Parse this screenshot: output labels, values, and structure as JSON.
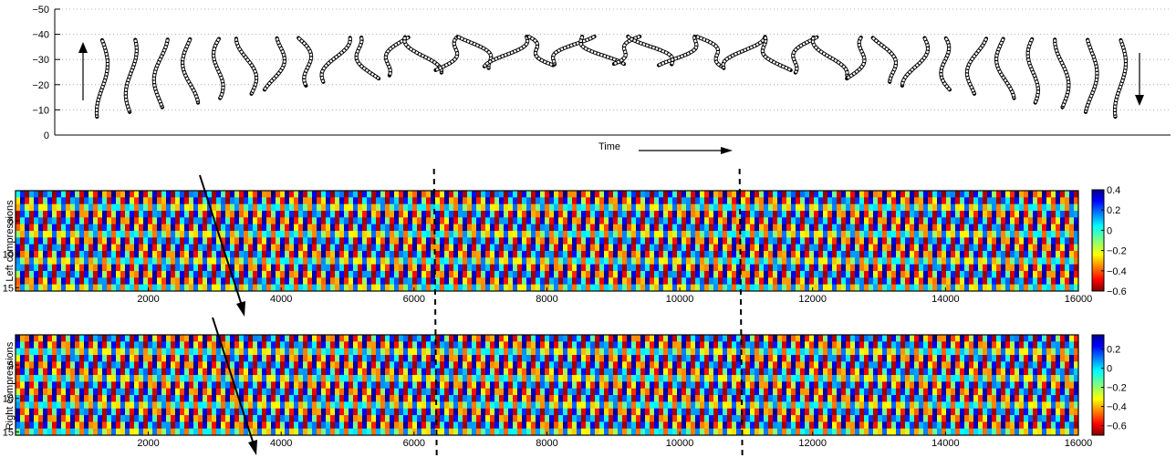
{
  "chart_data": [
    {
      "type": "line",
      "panel": "worm-shape-sequence",
      "xlabel": "Time",
      "ylabel": "",
      "ylim": [
        0,
        -50
      ],
      "yticks": [
        0,
        -10,
        -20,
        -30,
        -40,
        -50
      ],
      "ytick_labels": [
        "0",
        "−10",
        "−20",
        "−30",
        "−40",
        "−50"
      ],
      "grid": "dotted-horizontal",
      "annotations": [
        "up-arrow-left",
        "down-arrow-right",
        "time-arrow"
      ],
      "shape_count": 36
    },
    {
      "type": "heatmap",
      "panel": "left-compressions",
      "ylabel": "Left compressions",
      "xlim": [
        1,
        16000
      ],
      "xticks": [
        2000,
        4000,
        6000,
        8000,
        10000,
        12000,
        14000,
        16000
      ],
      "ylim": [
        1,
        15
      ],
      "yticks": [
        5,
        10,
        15
      ],
      "colorbar": {
        "min": -0.6,
        "max": 0.4,
        "ticks": [
          0.4,
          0.2,
          0,
          -0.2,
          -0.4,
          -0.6
        ],
        "tick_labels": [
          "0.4",
          "0.2",
          "0",
          "−0.2",
          "−0.4",
          "−0.6"
        ]
      },
      "colormap": "jet",
      "stripe_period": 200,
      "stripe_slope": "diagonal-wave-propagation",
      "dashed_lines_x": [
        6300,
        10900
      ]
    },
    {
      "type": "heatmap",
      "panel": "right-compressions",
      "ylabel": "Right compressions",
      "xlim": [
        1,
        16000
      ],
      "xticks": [
        2000,
        4000,
        6000,
        8000,
        10000,
        12000,
        14000,
        16000
      ],
      "ylim": [
        1,
        15
      ],
      "yticks": [
        5,
        10,
        15
      ],
      "colorbar": {
        "min": -0.7,
        "max": 0.35,
        "ticks": [
          0.2,
          0,
          -0.2,
          -0.4,
          -0.6
        ],
        "tick_labels": [
          "0.2",
          "0",
          "−0.2",
          "−0.4",
          "−0.6"
        ]
      },
      "colormap": "jet",
      "stripe_period": 200,
      "stripe_slope": "diagonal-wave-propagation",
      "dashed_lines_x": [
        6300,
        10900
      ]
    }
  ],
  "colors": {
    "axis": "#000000",
    "grid": "#9a9a9a",
    "shape_fill": "#ffffff"
  }
}
